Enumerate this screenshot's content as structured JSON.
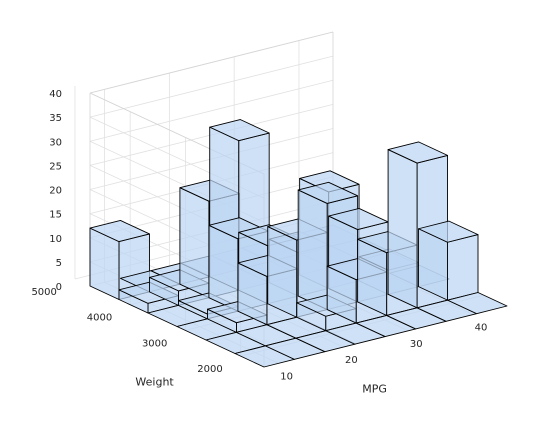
{
  "chart_data": {
    "type": "bar3d",
    "title": "",
    "xlabel": "MPG",
    "ylabel": "Weight",
    "zlabel": "",
    "x_ticks": [
      10,
      20,
      30,
      40
    ],
    "y_ticks": [
      2000,
      3000,
      4000,
      5000
    ],
    "z_ticks": [
      0,
      5,
      10,
      15,
      20,
      25,
      30,
      35,
      40
    ],
    "z_lim": [
      0,
      40
    ],
    "x_bin_centers": [
      10.1,
      14.8,
      19.5,
      24.1,
      28.8,
      33.5,
      38.2,
      42.9
    ],
    "y_bin_centers": [
      1840,
      2365,
      2890,
      3415,
      3940,
      4465
    ],
    "counts": [
      [
        0,
        0,
        0,
        0,
        0,
        0,
        0,
        0
      ],
      [
        0,
        0,
        0,
        3,
        9,
        13,
        30,
        12
      ],
      [
        0,
        2,
        10,
        16,
        22,
        15,
        5,
        0
      ],
      [
        0,
        1,
        15,
        12,
        9,
        20,
        0,
        0
      ],
      [
        2,
        3,
        20,
        31,
        0,
        0,
        0,
        0
      ],
      [
        12,
        0,
        0,
        0,
        0,
        0,
        0,
        0
      ]
    ],
    "grid": true,
    "bar_color": "#bcd6f2",
    "edge_color": "#000000"
  }
}
